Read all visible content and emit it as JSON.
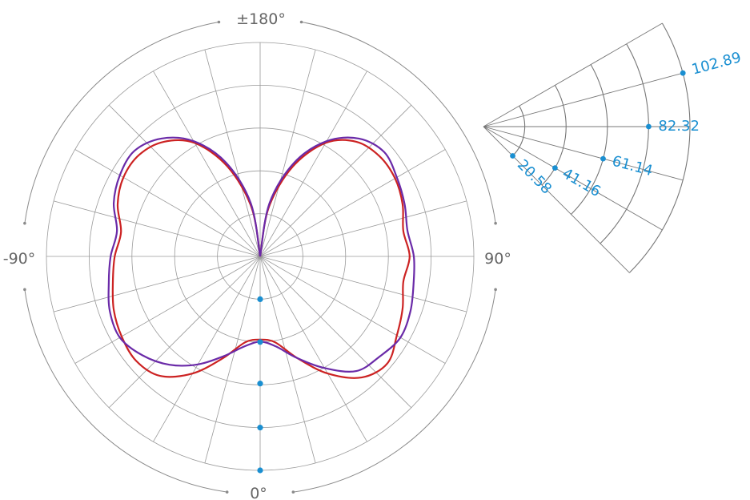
{
  "chart_data": {
    "type": "polar",
    "title": "",
    "accent_color": "#1a8fd1",
    "grid_color": "#9a9a9a",
    "angle_labels": {
      "bottom": "0°",
      "top": "±180°",
      "left": "-90°",
      "right": "90°"
    },
    "radial_max": 102.89,
    "radial_ticks": [
      20.58,
      41.16,
      61.14,
      82.32,
      102.89
    ],
    "radial_tick_labels": [
      "20.58",
      "41.16",
      "61.14",
      "82.32",
      "102.89"
    ],
    "rings": 5,
    "spokes_deg": 15,
    "series": [
      {
        "color": "#cc2222",
        "theta": [
          -180,
          -170,
          -160,
          -150,
          -140,
          -130,
          -120,
          -110,
          -100,
          -90,
          -80,
          -70,
          -60,
          -50,
          -40,
          -30,
          -20,
          -10,
          0,
          10,
          20,
          30,
          40,
          50,
          60,
          70,
          80,
          90,
          100,
          110,
          120,
          130,
          140,
          150,
          160,
          170,
          180
        ],
        "r": [
          0,
          24,
          46,
          63,
          72,
          76,
          76,
          73,
          68,
          70,
          72,
          75,
          77,
          78,
          75,
          65,
          52,
          42,
          40,
          42,
          52,
          65,
          76,
          80,
          76,
          73,
          70,
          72,
          70,
          73,
          75,
          75,
          72,
          63,
          46,
          24,
          0
        ]
      },
      {
        "color": "#6a2aa8",
        "theta": [
          -180,
          -170,
          -160,
          -150,
          -140,
          -130,
          -120,
          -110,
          -100,
          -90,
          -80,
          -70,
          -60,
          -50,
          -40,
          -30,
          -20,
          -10,
          0,
          10,
          20,
          30,
          40,
          50,
          60,
          70,
          80,
          90,
          100,
          110,
          120,
          130,
          140,
          150,
          160,
          170,
          180
        ],
        "r": [
          0,
          26,
          48,
          64,
          74,
          79,
          78,
          75,
          70,
          72,
          74,
          77,
          78,
          74,
          68,
          60,
          51,
          44,
          41,
          44,
          52,
          62,
          72,
          75,
          78,
          77,
          75,
          74,
          72,
          74,
          76,
          78,
          74,
          64,
          48,
          26,
          0
        ]
      }
    ]
  }
}
